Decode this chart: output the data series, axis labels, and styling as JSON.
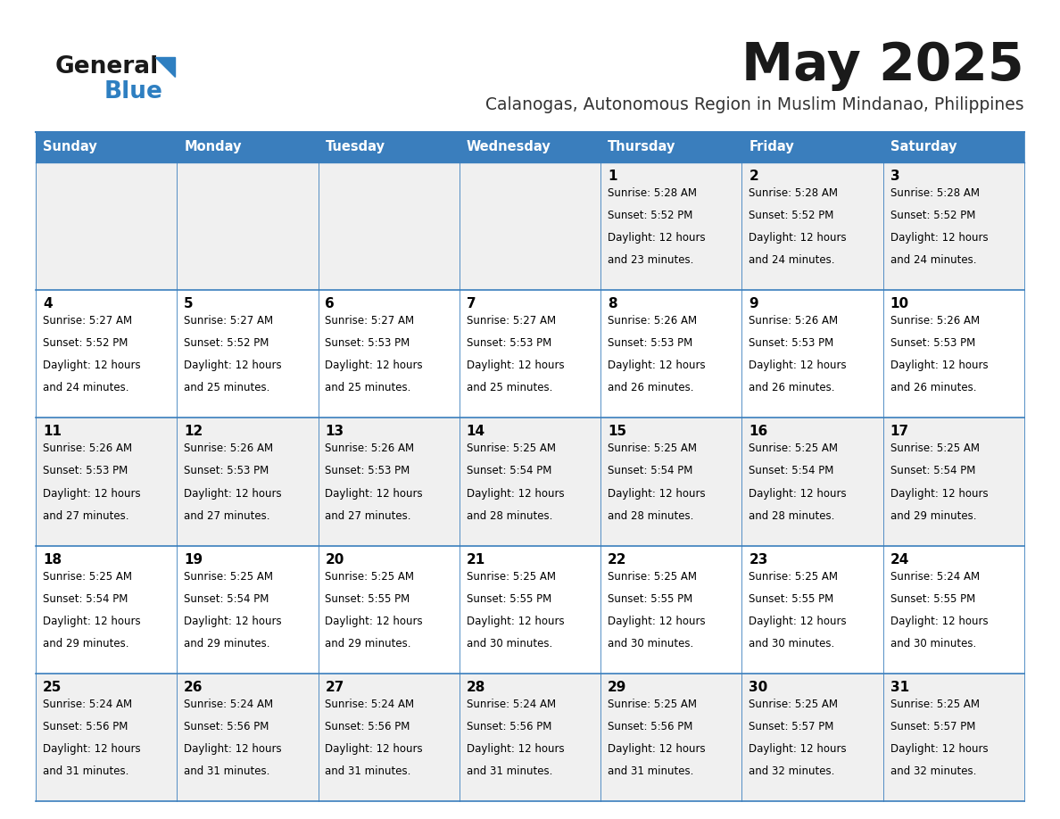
{
  "title": "May 2025",
  "subtitle": "Calanogas, Autonomous Region in Muslim Mindanao, Philippines",
  "days_of_week": [
    "Sunday",
    "Monday",
    "Tuesday",
    "Wednesday",
    "Thursday",
    "Friday",
    "Saturday"
  ],
  "header_bg": "#3A7EBD",
  "header_text": "#FFFFFF",
  "row_bg_even": "#F0F0F0",
  "row_bg_odd": "#FFFFFF",
  "cell_text_color": "#000000",
  "day_num_color": "#000000",
  "border_color": "#3A7EBD",
  "title_color": "#1a1a1a",
  "subtitle_color": "#333333",
  "logo_color1": "#1a1a1a",
  "logo_color2": "#2E7FC1",
  "calendar": [
    [
      {
        "day": null,
        "sunrise": null,
        "sunset": null,
        "daylight_hrs": null,
        "daylight_min": null
      },
      {
        "day": null,
        "sunrise": null,
        "sunset": null,
        "daylight_hrs": null,
        "daylight_min": null
      },
      {
        "day": null,
        "sunrise": null,
        "sunset": null,
        "daylight_hrs": null,
        "daylight_min": null
      },
      {
        "day": null,
        "sunrise": null,
        "sunset": null,
        "daylight_hrs": null,
        "daylight_min": null
      },
      {
        "day": 1,
        "sunrise": "5:28 AM",
        "sunset": "5:52 PM",
        "daylight_hrs": 12,
        "daylight_min": 23
      },
      {
        "day": 2,
        "sunrise": "5:28 AM",
        "sunset": "5:52 PM",
        "daylight_hrs": 12,
        "daylight_min": 24
      },
      {
        "day": 3,
        "sunrise": "5:28 AM",
        "sunset": "5:52 PM",
        "daylight_hrs": 12,
        "daylight_min": 24
      }
    ],
    [
      {
        "day": 4,
        "sunrise": "5:27 AM",
        "sunset": "5:52 PM",
        "daylight_hrs": 12,
        "daylight_min": 24
      },
      {
        "day": 5,
        "sunrise": "5:27 AM",
        "sunset": "5:52 PM",
        "daylight_hrs": 12,
        "daylight_min": 25
      },
      {
        "day": 6,
        "sunrise": "5:27 AM",
        "sunset": "5:53 PM",
        "daylight_hrs": 12,
        "daylight_min": 25
      },
      {
        "day": 7,
        "sunrise": "5:27 AM",
        "sunset": "5:53 PM",
        "daylight_hrs": 12,
        "daylight_min": 25
      },
      {
        "day": 8,
        "sunrise": "5:26 AM",
        "sunset": "5:53 PM",
        "daylight_hrs": 12,
        "daylight_min": 26
      },
      {
        "day": 9,
        "sunrise": "5:26 AM",
        "sunset": "5:53 PM",
        "daylight_hrs": 12,
        "daylight_min": 26
      },
      {
        "day": 10,
        "sunrise": "5:26 AM",
        "sunset": "5:53 PM",
        "daylight_hrs": 12,
        "daylight_min": 26
      }
    ],
    [
      {
        "day": 11,
        "sunrise": "5:26 AM",
        "sunset": "5:53 PM",
        "daylight_hrs": 12,
        "daylight_min": 27
      },
      {
        "day": 12,
        "sunrise": "5:26 AM",
        "sunset": "5:53 PM",
        "daylight_hrs": 12,
        "daylight_min": 27
      },
      {
        "day": 13,
        "sunrise": "5:26 AM",
        "sunset": "5:53 PM",
        "daylight_hrs": 12,
        "daylight_min": 27
      },
      {
        "day": 14,
        "sunrise": "5:25 AM",
        "sunset": "5:54 PM",
        "daylight_hrs": 12,
        "daylight_min": 28
      },
      {
        "day": 15,
        "sunrise": "5:25 AM",
        "sunset": "5:54 PM",
        "daylight_hrs": 12,
        "daylight_min": 28
      },
      {
        "day": 16,
        "sunrise": "5:25 AM",
        "sunset": "5:54 PM",
        "daylight_hrs": 12,
        "daylight_min": 28
      },
      {
        "day": 17,
        "sunrise": "5:25 AM",
        "sunset": "5:54 PM",
        "daylight_hrs": 12,
        "daylight_min": 29
      }
    ],
    [
      {
        "day": 18,
        "sunrise": "5:25 AM",
        "sunset": "5:54 PM",
        "daylight_hrs": 12,
        "daylight_min": 29
      },
      {
        "day": 19,
        "sunrise": "5:25 AM",
        "sunset": "5:54 PM",
        "daylight_hrs": 12,
        "daylight_min": 29
      },
      {
        "day": 20,
        "sunrise": "5:25 AM",
        "sunset": "5:55 PM",
        "daylight_hrs": 12,
        "daylight_min": 29
      },
      {
        "day": 21,
        "sunrise": "5:25 AM",
        "sunset": "5:55 PM",
        "daylight_hrs": 12,
        "daylight_min": 30
      },
      {
        "day": 22,
        "sunrise": "5:25 AM",
        "sunset": "5:55 PM",
        "daylight_hrs": 12,
        "daylight_min": 30
      },
      {
        "day": 23,
        "sunrise": "5:25 AM",
        "sunset": "5:55 PM",
        "daylight_hrs": 12,
        "daylight_min": 30
      },
      {
        "day": 24,
        "sunrise": "5:24 AM",
        "sunset": "5:55 PM",
        "daylight_hrs": 12,
        "daylight_min": 30
      }
    ],
    [
      {
        "day": 25,
        "sunrise": "5:24 AM",
        "sunset": "5:56 PM",
        "daylight_hrs": 12,
        "daylight_min": 31
      },
      {
        "day": 26,
        "sunrise": "5:24 AM",
        "sunset": "5:56 PM",
        "daylight_hrs": 12,
        "daylight_min": 31
      },
      {
        "day": 27,
        "sunrise": "5:24 AM",
        "sunset": "5:56 PM",
        "daylight_hrs": 12,
        "daylight_min": 31
      },
      {
        "day": 28,
        "sunrise": "5:24 AM",
        "sunset": "5:56 PM",
        "daylight_hrs": 12,
        "daylight_min": 31
      },
      {
        "day": 29,
        "sunrise": "5:25 AM",
        "sunset": "5:56 PM",
        "daylight_hrs": 12,
        "daylight_min": 31
      },
      {
        "day": 30,
        "sunrise": "5:25 AM",
        "sunset": "5:57 PM",
        "daylight_hrs": 12,
        "daylight_min": 32
      },
      {
        "day": 31,
        "sunrise": "5:25 AM",
        "sunset": "5:57 PM",
        "daylight_hrs": 12,
        "daylight_min": 32
      }
    ]
  ]
}
